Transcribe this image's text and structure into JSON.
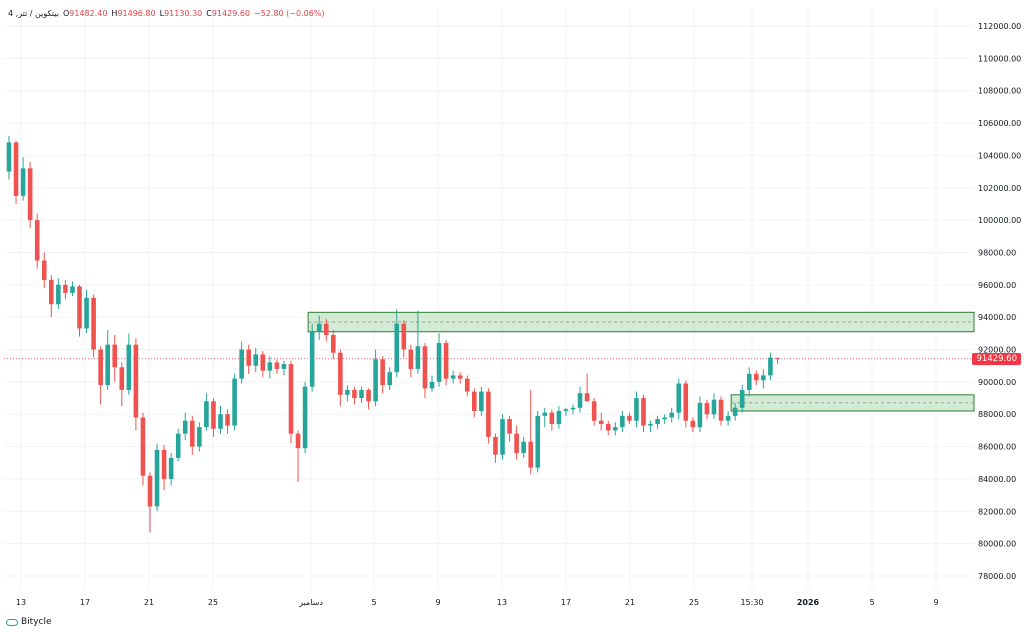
{
  "legend": {
    "symbol": "4 ,بيتكوين / تتر",
    "open_label": "O",
    "open": "91482.40",
    "high_label": "H",
    "high": "91496.80",
    "low_label": "L",
    "low": "91130.30",
    "close_label": "C",
    "close": "91429.60",
    "change": "−52.80 (−0.06%)"
  },
  "watermark": "Bitycle",
  "colors": {
    "up": "#26a69a",
    "down": "#ef5350",
    "zone_fill": "#c8e6c9",
    "zone_border": "#2e7d32",
    "last_price_line": "#f23645"
  },
  "chart_data": {
    "type": "candlestick",
    "y_ticks": [
      "78000.00",
      "80000.00",
      "82000.00",
      "84000.00",
      "86000.00",
      "88000.00",
      "90000.00",
      "92000.00",
      "94000.00",
      "96000.00",
      "98000.00",
      "100000.00",
      "102000.00",
      "104000.00",
      "106000.00",
      "108000.00",
      "110000.00",
      "112000.00"
    ],
    "ylim": [
      77000,
      113000
    ],
    "x_ticks": [
      "13",
      "17",
      "21",
      "25",
      "دسامبر",
      "5",
      "9",
      "13",
      "17",
      "21",
      "25",
      "15:30",
      "2026",
      "5",
      "9"
    ],
    "last_price": "91429.60",
    "zones": [
      {
        "from": 93100,
        "to": 94300,
        "mid": 93700,
        "start_index": 43
      },
      {
        "from": 88200,
        "to": 89200,
        "mid": 88700,
        "start_index": 103
      }
    ],
    "candles": [
      {
        "o": 103000,
        "h": 105200,
        "l": 102500,
        "c": 104800
      },
      {
        "o": 104800,
        "h": 104900,
        "l": 101000,
        "c": 101500
      },
      {
        "o": 101500,
        "h": 103900,
        "l": 101200,
        "c": 103200
      },
      {
        "o": 103200,
        "h": 103600,
        "l": 99500,
        "c": 100000
      },
      {
        "o": 100000,
        "h": 100400,
        "l": 97000,
        "c": 97500
      },
      {
        "o": 97500,
        "h": 98000,
        "l": 95800,
        "c": 96300
      },
      {
        "o": 96300,
        "h": 96600,
        "l": 94000,
        "c": 94800
      },
      {
        "o": 94800,
        "h": 96400,
        "l": 94500,
        "c": 96000
      },
      {
        "o": 96000,
        "h": 96300,
        "l": 95100,
        "c": 95500
      },
      {
        "o": 95500,
        "h": 96200,
        "l": 95300,
        "c": 95900
      },
      {
        "o": 95900,
        "h": 96000,
        "l": 92800,
        "c": 93300
      },
      {
        "o": 93300,
        "h": 95700,
        "l": 93000,
        "c": 95200
      },
      {
        "o": 95200,
        "h": 95400,
        "l": 91500,
        "c": 92000
      },
      {
        "o": 92000,
        "h": 92200,
        "l": 88600,
        "c": 89800
      },
      {
        "o": 89800,
        "h": 93200,
        "l": 89500,
        "c": 92300
      },
      {
        "o": 92300,
        "h": 92900,
        "l": 90000,
        "c": 90900
      },
      {
        "o": 90900,
        "h": 91200,
        "l": 88500,
        "c": 89500
      },
      {
        "o": 89500,
        "h": 93000,
        "l": 89200,
        "c": 92300
      },
      {
        "o": 92300,
        "h": 92700,
        "l": 87000,
        "c": 87800
      },
      {
        "o": 87800,
        "h": 88100,
        "l": 83600,
        "c": 84200
      },
      {
        "o": 84200,
        "h": 84400,
        "l": 80700,
        "c": 82300
      },
      {
        "o": 82300,
        "h": 86200,
        "l": 82000,
        "c": 85800
      },
      {
        "o": 85800,
        "h": 86100,
        "l": 83300,
        "c": 84000
      },
      {
        "o": 84000,
        "h": 85600,
        "l": 83600,
        "c": 85300
      },
      {
        "o": 85300,
        "h": 87100,
        "l": 85100,
        "c": 86800
      },
      {
        "o": 86800,
        "h": 88100,
        "l": 86400,
        "c": 87600
      },
      {
        "o": 87600,
        "h": 87900,
        "l": 85500,
        "c": 86000
      },
      {
        "o": 86000,
        "h": 87500,
        "l": 85700,
        "c": 87200
      },
      {
        "o": 87200,
        "h": 89300,
        "l": 87000,
        "c": 88800
      },
      {
        "o": 88800,
        "h": 89000,
        "l": 86600,
        "c": 87100
      },
      {
        "o": 87100,
        "h": 88500,
        "l": 86800,
        "c": 88000
      },
      {
        "o": 88000,
        "h": 88300,
        "l": 86800,
        "c": 87300
      },
      {
        "o": 87300,
        "h": 90500,
        "l": 87000,
        "c": 90200
      },
      {
        "o": 90200,
        "h": 92500,
        "l": 89900,
        "c": 92000
      },
      {
        "o": 92000,
        "h": 92300,
        "l": 90500,
        "c": 91000
      },
      {
        "o": 91000,
        "h": 92100,
        "l": 90600,
        "c": 91700
      },
      {
        "o": 91700,
        "h": 91900,
        "l": 90300,
        "c": 90700
      },
      {
        "o": 90700,
        "h": 91600,
        "l": 90200,
        "c": 91200
      },
      {
        "o": 91200,
        "h": 91400,
        "l": 90500,
        "c": 90800
      },
      {
        "o": 90800,
        "h": 91300,
        "l": 90400,
        "c": 91100
      },
      {
        "o": 91100,
        "h": 91300,
        "l": 86200,
        "c": 86800
      },
      {
        "o": 86800,
        "h": 87000,
        "l": 83800,
        "c": 85900
      },
      {
        "o": 85900,
        "h": 90000,
        "l": 85600,
        "c": 89700
      },
      {
        "o": 89700,
        "h": 93600,
        "l": 89400,
        "c": 93100
      },
      {
        "o": 93100,
        "h": 94100,
        "l": 92600,
        "c": 93600
      },
      {
        "o": 93600,
        "h": 93900,
        "l": 92500,
        "c": 92900
      },
      {
        "o": 92900,
        "h": 93200,
        "l": 91400,
        "c": 91800
      },
      {
        "o": 91800,
        "h": 92000,
        "l": 88500,
        "c": 89200
      },
      {
        "o": 89200,
        "h": 89800,
        "l": 88800,
        "c": 89500
      },
      {
        "o": 89500,
        "h": 89700,
        "l": 88600,
        "c": 89000
      },
      {
        "o": 89000,
        "h": 89700,
        "l": 88700,
        "c": 89500
      },
      {
        "o": 89500,
        "h": 89600,
        "l": 88300,
        "c": 88800
      },
      {
        "o": 88800,
        "h": 92000,
        "l": 88500,
        "c": 91400
      },
      {
        "o": 91400,
        "h": 91600,
        "l": 89300,
        "c": 89800
      },
      {
        "o": 89800,
        "h": 90900,
        "l": 89500,
        "c": 90600
      },
      {
        "o": 90600,
        "h": 94500,
        "l": 90300,
        "c": 93600
      },
      {
        "o": 93600,
        "h": 93800,
        "l": 91500,
        "c": 92000
      },
      {
        "o": 92000,
        "h": 92300,
        "l": 90300,
        "c": 90800
      },
      {
        "o": 90800,
        "h": 94400,
        "l": 90500,
        "c": 92200
      },
      {
        "o": 92200,
        "h": 92400,
        "l": 89000,
        "c": 89600
      },
      {
        "o": 89600,
        "h": 90400,
        "l": 89400,
        "c": 90000
      },
      {
        "o": 90000,
        "h": 93000,
        "l": 89700,
        "c": 92400
      },
      {
        "o": 92400,
        "h": 92600,
        "l": 89800,
        "c": 90200
      },
      {
        "o": 90200,
        "h": 90700,
        "l": 89900,
        "c": 90400
      },
      {
        "o": 90400,
        "h": 90600,
        "l": 89900,
        "c": 90200
      },
      {
        "o": 90200,
        "h": 90400,
        "l": 89100,
        "c": 89400
      },
      {
        "o": 89400,
        "h": 89600,
        "l": 87800,
        "c": 88200
      },
      {
        "o": 88200,
        "h": 89700,
        "l": 87900,
        "c": 89400
      },
      {
        "o": 89400,
        "h": 89600,
        "l": 86200,
        "c": 86600
      },
      {
        "o": 86600,
        "h": 86800,
        "l": 85000,
        "c": 85500
      },
      {
        "o": 85500,
        "h": 88000,
        "l": 85200,
        "c": 87700
      },
      {
        "o": 87700,
        "h": 87900,
        "l": 86300,
        "c": 86800
      },
      {
        "o": 86800,
        "h": 87300,
        "l": 85200,
        "c": 85600
      },
      {
        "o": 85600,
        "h": 86600,
        "l": 85300,
        "c": 86300
      },
      {
        "o": 86300,
        "h": 89500,
        "l": 84300,
        "c": 84700
      },
      {
        "o": 84700,
        "h": 88200,
        "l": 84400,
        "c": 87900
      },
      {
        "o": 87900,
        "h": 88400,
        "l": 87200,
        "c": 88100
      },
      {
        "o": 88100,
        "h": 88300,
        "l": 87000,
        "c": 87400
      },
      {
        "o": 87400,
        "h": 88500,
        "l": 87100,
        "c": 88200
      },
      {
        "o": 88200,
        "h": 88400,
        "l": 87900,
        "c": 88300
      },
      {
        "o": 88300,
        "h": 88600,
        "l": 88000,
        "c": 88400
      },
      {
        "o": 88400,
        "h": 89700,
        "l": 88100,
        "c": 89300
      },
      {
        "o": 89300,
        "h": 90500,
        "l": 88900,
        "c": 88800
      },
      {
        "o": 88800,
        "h": 89000,
        "l": 87300,
        "c": 87600
      },
      {
        "o": 87600,
        "h": 88100,
        "l": 87000,
        "c": 87400
      },
      {
        "o": 87400,
        "h": 87600,
        "l": 86700,
        "c": 87000
      },
      {
        "o": 87000,
        "h": 87500,
        "l": 86700,
        "c": 87200
      },
      {
        "o": 87200,
        "h": 88200,
        "l": 86900,
        "c": 87900
      },
      {
        "o": 87900,
        "h": 88100,
        "l": 87400,
        "c": 87600
      },
      {
        "o": 87600,
        "h": 89400,
        "l": 87200,
        "c": 89000
      },
      {
        "o": 89000,
        "h": 89200,
        "l": 86900,
        "c": 87300
      },
      {
        "o": 87300,
        "h": 87600,
        "l": 86900,
        "c": 87400
      },
      {
        "o": 87400,
        "h": 87900,
        "l": 87100,
        "c": 87700
      },
      {
        "o": 87700,
        "h": 88000,
        "l": 87400,
        "c": 87800
      },
      {
        "o": 87800,
        "h": 88400,
        "l": 87500,
        "c": 88100
      },
      {
        "o": 88100,
        "h": 90200,
        "l": 87700,
        "c": 89900
      },
      {
        "o": 89900,
        "h": 90100,
        "l": 87200,
        "c": 87600
      },
      {
        "o": 87600,
        "h": 87800,
        "l": 86900,
        "c": 87200
      },
      {
        "o": 87200,
        "h": 89100,
        "l": 86900,
        "c": 88700
      },
      {
        "o": 88700,
        "h": 88900,
        "l": 87700,
        "c": 88000
      },
      {
        "o": 88000,
        "h": 89300,
        "l": 87700,
        "c": 88900
      },
      {
        "o": 88900,
        "h": 89100,
        "l": 87300,
        "c": 87600
      },
      {
        "o": 87600,
        "h": 88200,
        "l": 87300,
        "c": 87900
      },
      {
        "o": 87900,
        "h": 88700,
        "l": 87600,
        "c": 88400
      },
      {
        "o": 88400,
        "h": 89800,
        "l": 88100,
        "c": 89500
      },
      {
        "o": 89500,
        "h": 90900,
        "l": 89100,
        "c": 90500
      },
      {
        "o": 90500,
        "h": 90700,
        "l": 89800,
        "c": 90100
      },
      {
        "o": 90100,
        "h": 90800,
        "l": 89600,
        "c": 90400
      },
      {
        "o": 90400,
        "h": 91800,
        "l": 90100,
        "c": 91500
      },
      {
        "o": 91482.4,
        "h": 91496.8,
        "l": 91130.3,
        "c": 91429.6
      }
    ]
  }
}
